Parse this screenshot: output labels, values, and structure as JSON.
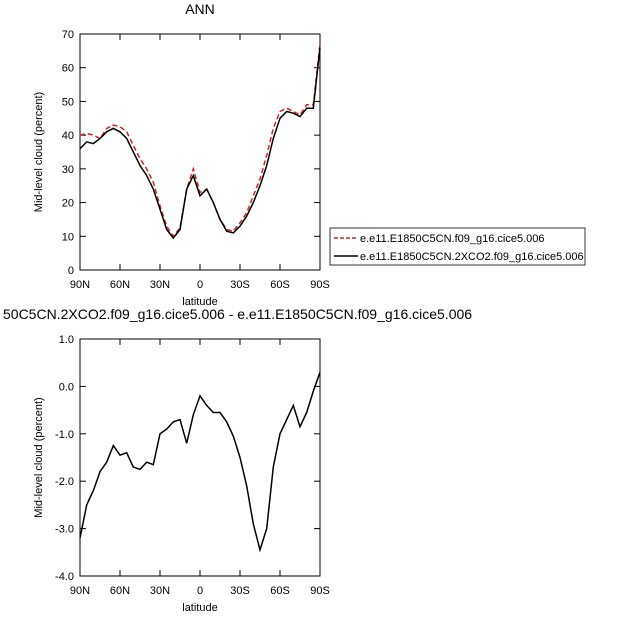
{
  "chart_data": [
    {
      "type": "line",
      "title": "ANN",
      "x_label": "latitude",
      "y_label": "Mid-level cloud (percent)",
      "x": [
        90,
        85,
        80,
        75,
        70,
        65,
        60,
        55,
        50,
        45,
        40,
        35,
        30,
        25,
        20,
        15,
        10,
        5,
        0,
        -5,
        -10,
        -15,
        -20,
        -25,
        -30,
        -35,
        -40,
        -45,
        -50,
        -55,
        -60,
        -65,
        -70,
        -75,
        -80,
        -85,
        -90
      ],
      "series": [
        {
          "name": "e.e11.E1850C5CN.f09_g16.cice5.006",
          "color": "#d62020",
          "line_style": "dashed",
          "values": [
            40,
            40.5,
            40,
            39,
            42,
            43,
            42.5,
            41,
            37,
            33,
            30,
            26,
            19,
            13,
            10,
            12.5,
            24,
            30,
            23,
            24,
            20,
            15,
            12,
            11.5,
            14,
            17,
            22,
            27,
            34,
            42,
            47,
            48,
            47,
            46,
            49,
            49,
            67
          ]
        },
        {
          "name": "e.e11.E1850C5CN.2XCO2.f09_g16.cice5.006",
          "color": "#000000",
          "line_style": "solid",
          "values": [
            36,
            38,
            37.5,
            39,
            41,
            42,
            41,
            39,
            35,
            31,
            28,
            24,
            18,
            12,
            9.5,
            12,
            24,
            28,
            22,
            24,
            20,
            15,
            11.5,
            11,
            13,
            16,
            20,
            25,
            31,
            39,
            45,
            47,
            46.5,
            45.5,
            48,
            48,
            66
          ]
        }
      ],
      "xlim": [
        90,
        -90
      ],
      "xticks": [
        {
          "value": 90,
          "label": "90N"
        },
        {
          "value": 60,
          "label": "60N"
        },
        {
          "value": 30,
          "label": "30N"
        },
        0,
        {
          "value": -30,
          "label": "30S"
        },
        {
          "value": -60,
          "label": "60S"
        },
        {
          "value": -90,
          "label": "90S"
        }
      ],
      "ylim": [
        0,
        70
      ],
      "yticks": [
        0,
        10,
        20,
        30,
        40,
        50,
        60,
        70
      ],
      "legend": "right"
    },
    {
      "type": "line",
      "title": "50C5CN.2XCO2.f09_g16.cice5.006 - e.e11.E1850C5CN.f09_g16.cice5.006",
      "x_label": "latitude",
      "y_label": "Mid-level cloud (percent)",
      "x": [
        90,
        85,
        80,
        75,
        70,
        65,
        60,
        55,
        50,
        45,
        40,
        35,
        30,
        25,
        20,
        15,
        10,
        5,
        0,
        -5,
        -10,
        -15,
        -20,
        -25,
        -30,
        -35,
        -40,
        -45,
        -50,
        -55,
        -60,
        -65,
        -70,
        -75,
        -80,
        -85,
        -90
      ],
      "values": [
        -3.2,
        -2.5,
        -2.2,
        -1.8,
        -1.6,
        -1.25,
        -1.45,
        -1.4,
        -1.7,
        -1.75,
        -1.6,
        -1.65,
        -1.0,
        -0.9,
        -0.75,
        -0.7,
        -1.2,
        -0.6,
        -0.2,
        -0.4,
        -0.55,
        -0.55,
        -0.75,
        -1.05,
        -1.5,
        -2.1,
        -2.9,
        -3.45,
        -3.0,
        -1.7,
        -1.0,
        -0.7,
        -0.4,
        -0.85,
        -0.55,
        -0.1,
        0.3
      ],
      "color": "#000000",
      "xlim": [
        90,
        -90
      ],
      "xticks": [
        {
          "value": 90,
          "label": "90N"
        },
        {
          "value": 60,
          "label": "60N"
        },
        {
          "value": 30,
          "label": "30N"
        },
        0,
        {
          "value": -30,
          "label": "30S"
        },
        {
          "value": -60,
          "label": "60S"
        },
        {
          "value": -90,
          "label": "90S"
        }
      ],
      "ylim": [
        -4,
        1
      ],
      "yticks": [
        {
          "value": -4,
          "label": "-4.0"
        },
        {
          "value": -3,
          "label": "-3.0"
        },
        {
          "value": -2,
          "label": "-2.0"
        },
        {
          "value": -1,
          "label": "-1.0"
        },
        {
          "value": 0,
          "label": "0.0"
        },
        {
          "value": 1,
          "label": "1.0"
        }
      ]
    }
  ]
}
